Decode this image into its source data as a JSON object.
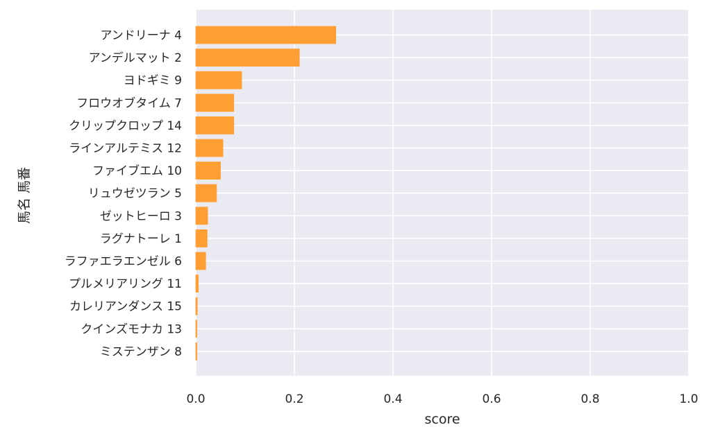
{
  "chart_data": {
    "type": "bar",
    "orientation": "horizontal",
    "categories": [
      "アンドリーナ 4",
      "アンデルマット 2",
      "ヨドギミ 9",
      "フロウオブタイム 7",
      "クリップクロップ 14",
      "ラインアルテミス 12",
      "ファイブエム 10",
      "リュウゼツラン 5",
      "ゼットヒーロ 3",
      "ラグナトーレ 1",
      "ラファエラエンゼル 6",
      "プルメリアリング 11",
      "カレリアンダンス 15",
      "クインズモナカ 13",
      "ミステンザン 8"
    ],
    "values": [
      0.284,
      0.21,
      0.093,
      0.077,
      0.077,
      0.055,
      0.05,
      0.042,
      0.024,
      0.023,
      0.02,
      0.005,
      0.003,
      0.002,
      0.002
    ],
    "xlabel": "score",
    "ylabel": "馬名 馬番",
    "xlim": [
      0,
      1.0
    ],
    "xticks": [
      "0.0",
      "0.2",
      "0.4",
      "0.6",
      "0.8",
      "1.0"
    ],
    "xtick_values": [
      0,
      0.2,
      0.4,
      0.6,
      0.8,
      1.0
    ],
    "grid": true,
    "bar_color": "#ff9f33",
    "bar_edge_color": "#ff9f33",
    "background_color": "#eaeaf2",
    "grid_color": "#ffffff"
  }
}
